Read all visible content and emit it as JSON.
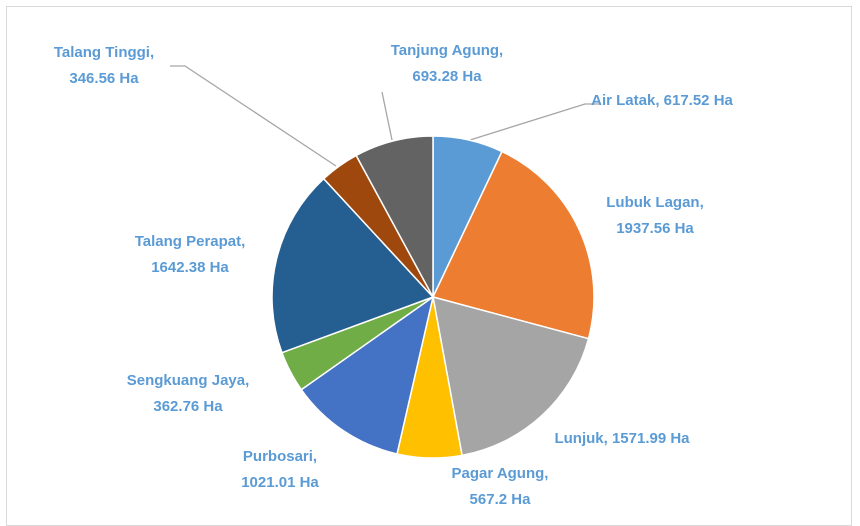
{
  "chart_data": {
    "type": "pie",
    "values": [
      617.52,
      1937.56,
      1571.99,
      567.2,
      1021.01,
      362.76,
      1642.38,
      346.56,
      693.28
    ],
    "value_labels": [
      "Air Latak, 617.52 Ha",
      "Lubuk Lagan, 1937.56 Ha",
      "Lunjuk, 1571.99 Ha",
      "Pagar Agung, 567.2 Ha",
      "Purbosari, 1021.01 Ha",
      "Sengkuang Jaya, 362.76 Ha",
      "Talang Perapat, 1642.38 Ha",
      "Talang Tinggi, 346.56 Ha",
      "Tanjung Agung, 693.28 Ha"
    ],
    "colors": [
      "#5b9bd5",
      "#ed7d31",
      "#a5a5a5",
      "#ffc000",
      "#4472c4",
      "#70ad47",
      "#255e91",
      "#9e480e",
      "#636363"
    ]
  }
}
